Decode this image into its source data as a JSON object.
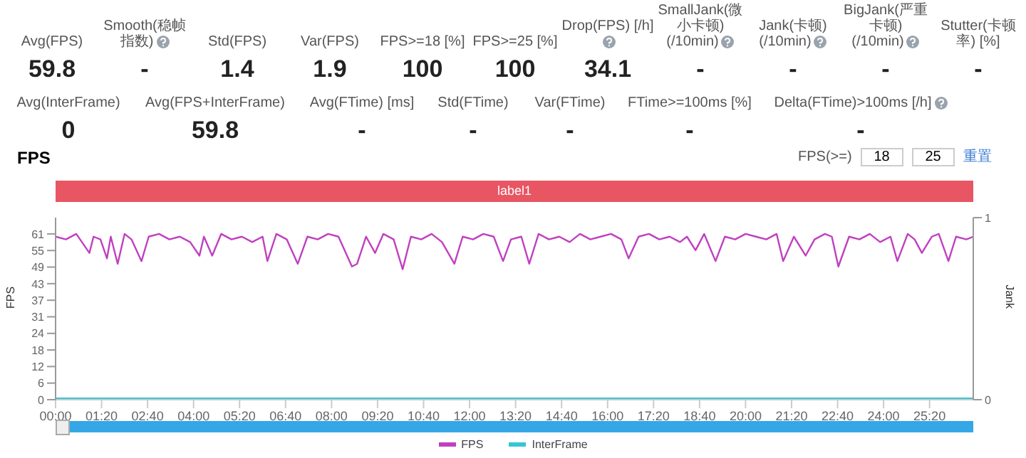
{
  "chart_data": {
    "type": "line",
    "title": "FPS",
    "ylabel": "FPS",
    "y2label": "Jank",
    "annotations": [
      "Avg(FPS)",
      "59.8",
      "Smooth(稳帧指数)",
      "-",
      "Std(FPS)",
      "1.4",
      "Var(FPS)",
      "1.9",
      "FPS>=18 [%]",
      "100",
      "FPS>=25 [%]",
      "100",
      "Drop(FPS) [/h]",
      "34.1",
      "SmallJank(微小卡顿)\n(/10min)",
      "-",
      "Jank(卡顿)\n(/10min)",
      "-",
      "BigJank(严重卡顿)\n(/10min)",
      "-",
      "Stutter(卡顿率) [%]",
      "-",
      "Avg(InterFrame)",
      "0",
      "Avg(FPS+InterFrame)",
      "59.8",
      "Avg(FTime) [ms]",
      "-",
      "Std(FTime)",
      "-",
      "Var(FTime)",
      "-",
      "FTime>=100ms [%]",
      "-",
      "Delta(FTime)>100ms [/h]",
      "-",
      "FPS(>=)",
      "18",
      "25",
      "重置",
      "label1"
    ],
    "series": [
      {
        "name": "FPS",
        "color": "#c040c0",
        "x": [
          0,
          0.3,
          0.6,
          0.98,
          1.1,
          1.3,
          1.49,
          1.6,
          1.8,
          2.0,
          2.2,
          2.49,
          2.7,
          3.0,
          3.3,
          3.6,
          3.9,
          4.17,
          4.3,
          4.54,
          4.8,
          5.1,
          5.4,
          5.7,
          6.0,
          6.14,
          6.4,
          6.7,
          7.02,
          7.3,
          7.6,
          7.9,
          8.2,
          8.59,
          8.74,
          9.0,
          9.26,
          9.5,
          9.8,
          10.06,
          10.3,
          10.6,
          10.9,
          11.2,
          11.56,
          11.8,
          12.1,
          12.4,
          12.7,
          12.97,
          13.2,
          13.5,
          13.73,
          14.0,
          14.3,
          14.6,
          14.9,
          15.2,
          15.5,
          15.8,
          16.1,
          16.4,
          16.61,
          16.9,
          17.2,
          17.5,
          17.8,
          18.1,
          18.3,
          18.55,
          18.8,
          19.13,
          19.4,
          19.7,
          20.0,
          20.3,
          20.6,
          20.9,
          21.09,
          21.4,
          21.74,
          22.0,
          22.3,
          22.5,
          22.69,
          23.0,
          23.3,
          23.6,
          23.9,
          24.2,
          24.4,
          24.7,
          24.9,
          25.11,
          25.4,
          25.6,
          25.88,
          26.1,
          26.4,
          26.6
        ],
        "values": [
          60,
          59,
          61,
          54,
          60,
          59,
          52,
          60,
          50,
          61,
          59,
          51,
          60,
          61,
          59,
          60,
          58,
          53,
          60,
          53,
          61,
          59,
          60,
          58,
          60,
          51,
          61,
          59,
          50,
          60,
          59,
          61,
          60,
          49,
          50,
          60,
          54,
          61,
          59,
          48,
          60,
          59,
          61,
          58,
          50,
          60,
          59,
          61,
          60,
          51,
          59,
          60,
          50,
          61,
          59,
          60,
          58,
          61,
          59,
          60,
          61,
          59,
          52,
          60,
          61,
          59,
          60,
          58,
          60,
          55,
          61,
          51,
          60,
          59,
          61,
          60,
          59,
          61,
          51,
          60,
          53,
          59,
          61,
          60,
          49,
          60,
          59,
          61,
          58,
          60,
          51,
          61,
          59,
          54,
          60,
          61,
          51,
          60,
          59,
          60
        ]
      },
      {
        "name": "InterFrame",
        "color": "#35c6d4",
        "x": [
          0,
          26.6
        ],
        "values": [
          0,
          0
        ]
      }
    ],
    "xlim": [
      0,
      26.6
    ],
    "xticks": [
      {
        "value": 0,
        "label": "00:00"
      },
      {
        "value": 1.333,
        "label": "01:20"
      },
      {
        "value": 2.667,
        "label": "02:40"
      },
      {
        "value": 4,
        "label": "04:00"
      },
      {
        "value": 5.333,
        "label": "05:20"
      },
      {
        "value": 6.667,
        "label": "06:40"
      },
      {
        "value": 8,
        "label": "08:00"
      },
      {
        "value": 9.333,
        "label": "09:20"
      },
      {
        "value": 10.667,
        "label": "10:40"
      },
      {
        "value": 12,
        "label": "12:00"
      },
      {
        "value": 13.333,
        "label": "13:20"
      },
      {
        "value": 14.667,
        "label": "14:40"
      },
      {
        "value": 16,
        "label": "16:00"
      },
      {
        "value": 17.333,
        "label": "17:20"
      },
      {
        "value": 18.667,
        "label": "18:40"
      },
      {
        "value": 20,
        "label": "20:00"
      },
      {
        "value": 21.333,
        "label": "21:20"
      },
      {
        "value": 22.667,
        "label": "22:40"
      },
      {
        "value": 24,
        "label": "24:00"
      },
      {
        "value": 25.333,
        "label": "25:20"
      }
    ],
    "ylim": [
      0,
      67
    ],
    "yticks": [
      0,
      {
        "value": 6.1,
        "label": "6"
      },
      {
        "value": 12.2,
        "label": "12"
      },
      {
        "value": 18.3,
        "label": "18"
      },
      {
        "value": 24.4,
        "label": "24"
      },
      {
        "value": 30.5,
        "label": "31"
      },
      {
        "value": 36.6,
        "label": "37"
      },
      {
        "value": 42.7,
        "label": "43"
      },
      {
        "value": 48.8,
        "label": "49"
      },
      {
        "value": 54.9,
        "label": "55"
      },
      61
    ],
    "y2lim": [
      0,
      1
    ],
    "y2ticks": [
      0,
      1
    ],
    "legend": "bottom"
  }
}
